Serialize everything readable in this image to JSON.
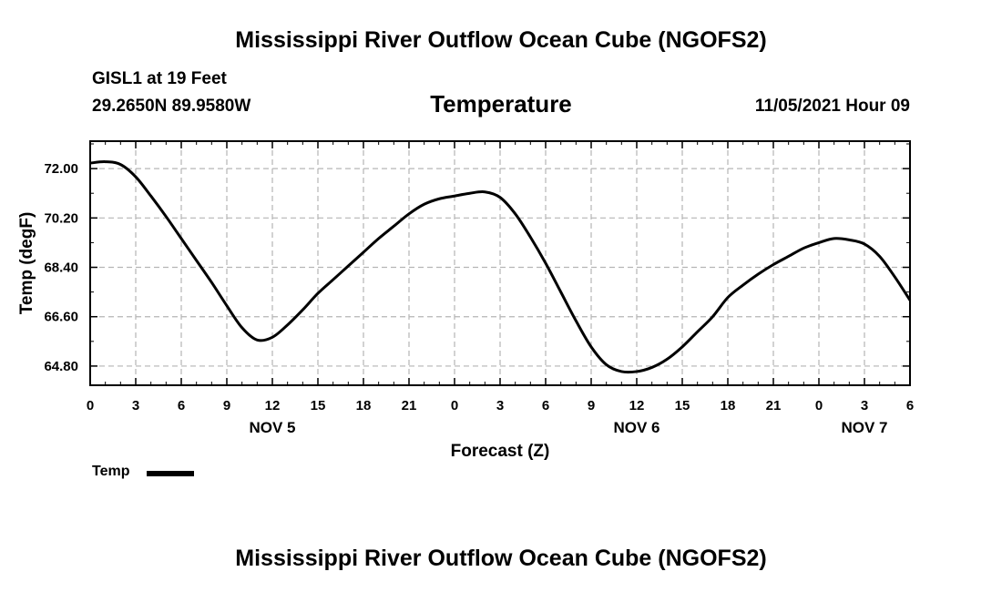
{
  "header": {
    "title": "Mississippi River Outflow Ocean Cube (NGOFS2)",
    "station": "GISL1 at 19 Feet",
    "coordinates": "29.2650N  89.9580W",
    "variable": "Temperature",
    "timestamp": "11/05/2021 Hour 09"
  },
  "legend": {
    "label": "Temp",
    "color": "#000000"
  },
  "footer": {
    "title": "Mississippi River Outflow Ocean Cube (NGOFS2)"
  },
  "chart_data": {
    "type": "line",
    "title": "Temperature",
    "xlabel": "Forecast (Z)",
    "ylabel": "Temp (degF)",
    "xlim": [
      0,
      54
    ],
    "ylim": [
      64.1,
      73.0
    ],
    "grid": true,
    "legend_position": "bottom-left",
    "x_ticks": [
      0,
      3,
      6,
      9,
      12,
      15,
      18,
      21,
      24,
      27,
      30,
      33,
      36,
      39,
      42,
      45,
      48,
      51,
      54
    ],
    "x_tick_labels": [
      "0",
      "3",
      "6",
      "9",
      "12",
      "15",
      "18",
      "21",
      "0",
      "3",
      "6",
      "9",
      "12",
      "15",
      "18",
      "21",
      "0",
      "3",
      "6"
    ],
    "day_labels": [
      {
        "x": 12,
        "label": "NOV 5"
      },
      {
        "x": 36,
        "label": "NOV 6"
      },
      {
        "x": 51,
        "label": "NOV 7"
      }
    ],
    "y_ticks": [
      64.8,
      66.6,
      68.4,
      70.2,
      72.0
    ],
    "y_tick_labels": [
      "64.80",
      "66.60",
      "68.40",
      "70.20",
      "72.00"
    ],
    "series": [
      {
        "name": "Temp",
        "color": "#000000",
        "x": [
          0,
          1,
          2,
          3,
          4,
          5,
          6,
          7,
          8,
          9,
          10,
          11,
          12,
          13,
          14,
          15,
          16,
          17,
          18,
          19,
          20,
          21,
          22,
          23,
          24,
          25,
          26,
          27,
          28,
          29,
          30,
          31,
          32,
          33,
          34,
          35,
          36,
          37,
          38,
          39,
          40,
          41,
          42,
          43,
          44,
          45,
          46,
          47,
          48,
          49,
          50,
          51,
          52,
          53,
          54
        ],
        "values": [
          72.2,
          72.25,
          72.15,
          71.7,
          71.0,
          70.25,
          69.45,
          68.65,
          67.85,
          67.0,
          66.2,
          65.75,
          65.85,
          66.3,
          66.85,
          67.45,
          67.95,
          68.45,
          68.95,
          69.45,
          69.9,
          70.35,
          70.7,
          70.9,
          71.0,
          71.1,
          71.15,
          70.95,
          70.35,
          69.5,
          68.55,
          67.5,
          66.45,
          65.5,
          64.85,
          64.6,
          64.6,
          64.75,
          65.05,
          65.5,
          66.05,
          66.6,
          67.3,
          67.75,
          68.15,
          68.5,
          68.8,
          69.1,
          69.3,
          69.45,
          69.4,
          69.25,
          68.8,
          68.05,
          67.2
        ]
      }
    ]
  }
}
